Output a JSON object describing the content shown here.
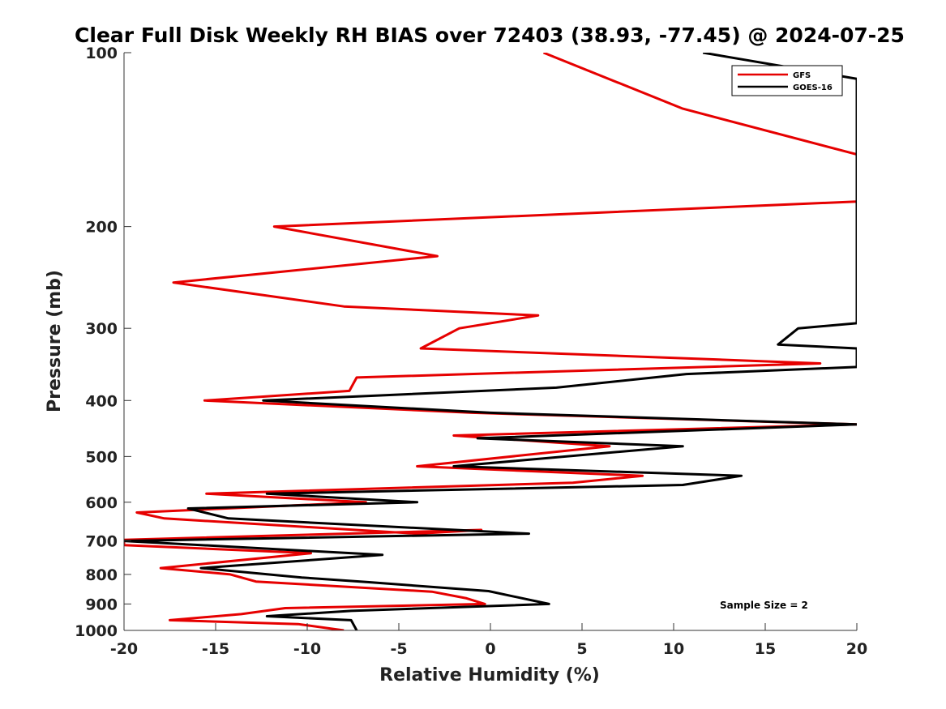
{
  "chart_data": {
    "type": "line",
    "title": "Clear Full Disk Weekly RH BIAS over 72403 (38.93, -77.45) @ 2024-07-25",
    "xlabel": "Relative Humidity (%)",
    "ylabel": "Pressure (mb)",
    "xlim": [
      -20,
      20
    ],
    "ylim": [
      100,
      1000
    ],
    "y_scale": "log",
    "y_reversed": true,
    "xticks": [
      -20,
      -15,
      -10,
      -5,
      0,
      5,
      10,
      15,
      20
    ],
    "yticks": [
      100,
      200,
      300,
      400,
      500,
      600,
      700,
      800,
      900,
      1000
    ],
    "grid": false,
    "legend_position": "top-right",
    "annotation": "Sample Size = 2",
    "series": [
      {
        "name": "GFS",
        "color": "#e60000",
        "points": [
          [
            2.9,
            100
          ],
          [
            10.5,
            125
          ],
          [
            20,
            150
          ],
          [
            20,
            181
          ],
          [
            -11.8,
            200
          ],
          [
            -2.9,
            225
          ],
          [
            -17.3,
            250
          ],
          [
            -8,
            275
          ],
          [
            2.6,
            285
          ],
          [
            -1.7,
            300
          ],
          [
            -3.8,
            325
          ],
          [
            18,
            345
          ],
          [
            -7.3,
            365
          ],
          [
            -7.7,
            385
          ],
          [
            -15.6,
            400
          ],
          [
            -1,
            420
          ],
          [
            20,
            440
          ],
          [
            -2,
            460
          ],
          [
            6.5,
            480
          ],
          [
            -4,
            520
          ],
          [
            8.3,
            540
          ],
          [
            4.5,
            555
          ],
          [
            -15.5,
            580
          ],
          [
            -6.8,
            600
          ],
          [
            -19.3,
            625
          ],
          [
            -17.8,
            640
          ],
          [
            -4,
            680
          ],
          [
            -0.5,
            670
          ],
          [
            -20,
            697
          ],
          [
            -20,
            712
          ],
          [
            -9.8,
            735
          ],
          [
            -18,
            780
          ],
          [
            -14.2,
            800
          ],
          [
            -12.8,
            823
          ],
          [
            -3.2,
            857
          ],
          [
            -1.3,
            880
          ],
          [
            -0.3,
            900
          ],
          [
            -11.2,
            915
          ],
          [
            -13.6,
            937
          ],
          [
            -17.5,
            960
          ],
          [
            -10.5,
            975
          ],
          [
            -8,
            1000
          ]
        ]
      },
      {
        "name": "GOES-16",
        "color": "#000000",
        "points": [
          [
            11.6,
            100
          ],
          [
            20,
            111
          ],
          [
            20,
            294
          ],
          [
            16.8,
            300
          ],
          [
            15.7,
            320
          ],
          [
            20,
            325
          ],
          [
            20,
            350
          ],
          [
            10.7,
            360
          ],
          [
            3.6,
            380
          ],
          [
            -12.4,
            400
          ],
          [
            0,
            420
          ],
          [
            20,
            440
          ],
          [
            -0.7,
            465
          ],
          [
            10.5,
            480
          ],
          [
            -2,
            520
          ],
          [
            13.7,
            540
          ],
          [
            10.5,
            560
          ],
          [
            -12.2,
            580
          ],
          [
            -4,
            600
          ],
          [
            -16.5,
            615
          ],
          [
            -14.3,
            640
          ],
          [
            2.1,
            680
          ],
          [
            -20,
            700
          ],
          [
            -5.9,
            740
          ],
          [
            -15.8,
            780
          ],
          [
            -10.3,
            810
          ],
          [
            -6.7,
            825
          ],
          [
            -0.1,
            855
          ],
          [
            3.2,
            900
          ],
          [
            -7.6,
            925
          ],
          [
            -12.2,
            945
          ],
          [
            -7.6,
            960
          ],
          [
            -7.3,
            1000
          ]
        ]
      }
    ]
  }
}
